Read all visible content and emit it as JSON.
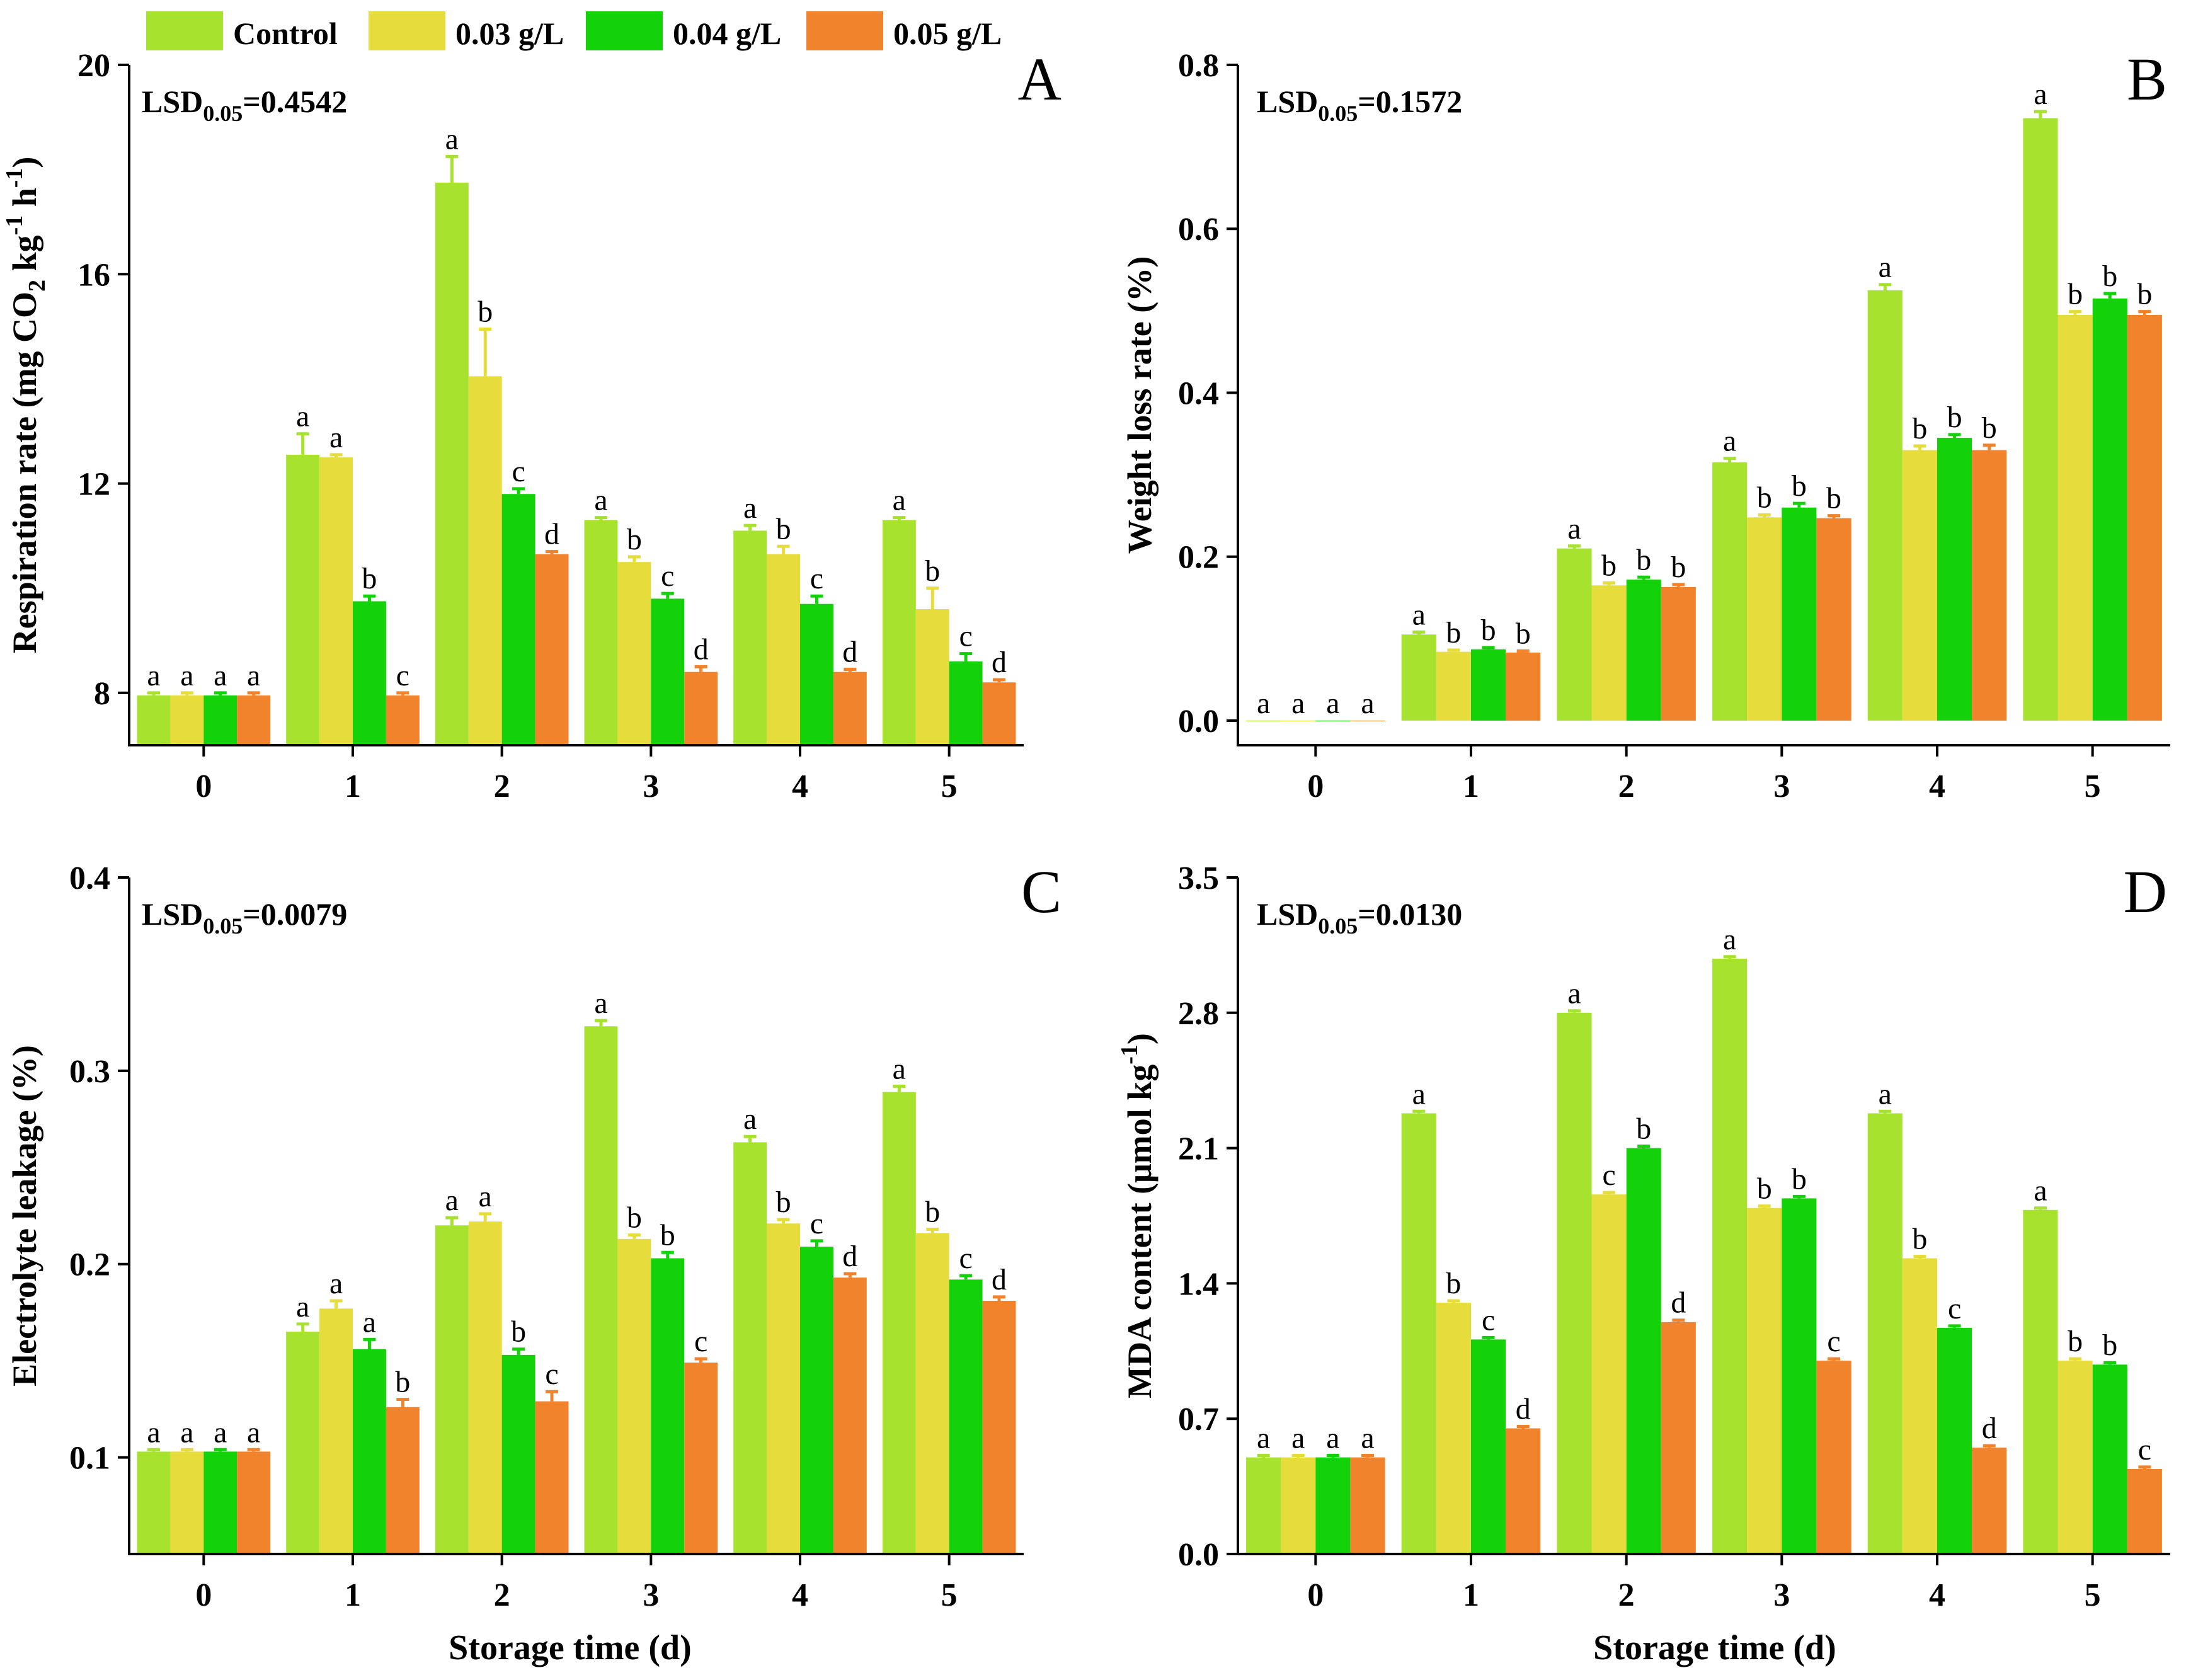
{
  "legend": {
    "items": [
      {
        "label": "Control",
        "color": "#a6e22e"
      },
      {
        "label": "0.03 g/L",
        "color": "#e6dc3c"
      },
      {
        "label": "0.04 g/L",
        "color": "#14d20a"
      },
      {
        "label": "0.05 g/L",
        "color": "#f0832c"
      }
    ]
  },
  "shared_xlabel": "Storage time (d)",
  "chart_data": [
    {
      "type": "bar",
      "panel_letter": "A",
      "lsd_prefix": "LSD",
      "lsd_sub": "0.05",
      "lsd_value": "=0.4542",
      "ylabel_parts": [
        "Respiration rate (mg CO",
        "2",
        " kg",
        "-1",
        " h",
        "-1",
        ")"
      ],
      "categories": [
        "0",
        "1",
        "2",
        "3",
        "4",
        "5"
      ],
      "ylim": [
        7,
        20
      ],
      "yticks": [
        8,
        12,
        16,
        20
      ],
      "ytick_labels": [
        "8",
        "12",
        "16",
        "20"
      ],
      "series": [
        {
          "name": "Control",
          "values": [
            7.95,
            12.55,
            17.75,
            11.3,
            11.1,
            11.3
          ],
          "errors": [
            0.05,
            0.4,
            0.5,
            0.05,
            0.1,
            0.05
          ],
          "letters": [
            "a",
            "a",
            "a",
            "a",
            "a",
            "a"
          ]
        },
        {
          "name": "0.03 g/L",
          "values": [
            7.95,
            12.5,
            14.05,
            10.5,
            10.65,
            9.6
          ],
          "errors": [
            0.05,
            0.05,
            0.9,
            0.1,
            0.15,
            0.4
          ],
          "letters": [
            "a",
            "a",
            "b",
            "b",
            "b",
            "b"
          ]
        },
        {
          "name": "0.04 g/L",
          "values": [
            7.95,
            9.75,
            11.8,
            9.8,
            9.7,
            8.6
          ],
          "errors": [
            0.05,
            0.1,
            0.1,
            0.1,
            0.15,
            0.15
          ],
          "letters": [
            "a",
            "b",
            "c",
            "c",
            "c",
            "c"
          ]
        },
        {
          "name": "0.05 g/L",
          "values": [
            7.95,
            7.95,
            10.65,
            8.4,
            8.4,
            8.2
          ],
          "errors": [
            0.05,
            0.05,
            0.05,
            0.1,
            0.05,
            0.05
          ],
          "letters": [
            "a",
            "c",
            "d",
            "d",
            "d",
            "d"
          ]
        }
      ]
    },
    {
      "type": "bar",
      "panel_letter": "B",
      "lsd_prefix": "LSD",
      "lsd_sub": "0.05",
      "lsd_value": "=0.1572",
      "ylabel_parts": [
        "Weight loss rate (%)"
      ],
      "categories": [
        "0",
        "1",
        "2",
        "3",
        "4",
        "5"
      ],
      "ylim": [
        -0.03,
        0.8
      ],
      "yticks": [
        0.0,
        0.2,
        0.4,
        0.6,
        0.8
      ],
      "ytick_labels": [
        "0.0",
        "0.2",
        "0.4",
        "0.6",
        "0.8"
      ],
      "series": [
        {
          "name": "Control",
          "values": [
            0.0,
            0.105,
            0.21,
            0.315,
            0.525,
            0.735
          ],
          "errors": [
            0.0,
            0.003,
            0.003,
            0.005,
            0.007,
            0.008
          ],
          "letters": [
            "a",
            "a",
            "a",
            "a",
            "a",
            "a"
          ]
        },
        {
          "name": "0.03 g/L",
          "values": [
            0.0,
            0.084,
            0.165,
            0.248,
            0.33,
            0.495
          ],
          "errors": [
            0.0,
            0.002,
            0.003,
            0.003,
            0.005,
            0.004
          ],
          "letters": [
            "a",
            "b",
            "b",
            "b",
            "b",
            "b"
          ]
        },
        {
          "name": "0.04 g/L",
          "values": [
            0.0,
            0.087,
            0.172,
            0.26,
            0.345,
            0.515
          ],
          "errors": [
            0.0,
            0.002,
            0.003,
            0.005,
            0.004,
            0.006
          ],
          "letters": [
            "a",
            "b",
            "b",
            "b",
            "b",
            "b"
          ]
        },
        {
          "name": "0.05 g/L",
          "values": [
            0.0,
            0.083,
            0.163,
            0.247,
            0.33,
            0.495
          ],
          "errors": [
            0.0,
            0.002,
            0.003,
            0.003,
            0.006,
            0.004
          ],
          "letters": [
            "a",
            "b",
            "b",
            "b",
            "b",
            "b"
          ]
        }
      ]
    },
    {
      "type": "bar",
      "panel_letter": "C",
      "lsd_prefix": "LSD",
      "lsd_sub": "0.05",
      "lsd_value": "=0.0079",
      "ylabel_parts": [
        "Electrolyte leakage (%)"
      ],
      "categories": [
        "0",
        "1",
        "2",
        "3",
        "4",
        "5"
      ],
      "ylim": [
        0.05,
        0.4
      ],
      "yticks": [
        0.1,
        0.2,
        0.3,
        0.4
      ],
      "ytick_labels": [
        "0.1",
        "0.2",
        "0.3",
        "0.4"
      ],
      "series": [
        {
          "name": "Control",
          "values": [
            0.103,
            0.165,
            0.22,
            0.323,
            0.263,
            0.289
          ],
          "errors": [
            0.001,
            0.004,
            0.004,
            0.003,
            0.003,
            0.003
          ],
          "letters": [
            "a",
            "a",
            "a",
            "a",
            "a",
            "a"
          ]
        },
        {
          "name": "0.03 g/L",
          "values": [
            0.103,
            0.177,
            0.222,
            0.213,
            0.221,
            0.216
          ],
          "errors": [
            0.001,
            0.004,
            0.004,
            0.002,
            0.002,
            0.002
          ],
          "letters": [
            "a",
            "a",
            "a",
            "b",
            "b",
            "b"
          ]
        },
        {
          "name": "0.04 g/L",
          "values": [
            0.103,
            0.156,
            0.153,
            0.203,
            0.209,
            0.192
          ],
          "errors": [
            0.001,
            0.005,
            0.003,
            0.003,
            0.003,
            0.002
          ],
          "letters": [
            "a",
            "a",
            "b",
            "b",
            "c",
            "c"
          ]
        },
        {
          "name": "0.05 g/L",
          "values": [
            0.103,
            0.126,
            0.129,
            0.149,
            0.193,
            0.181
          ],
          "errors": [
            0.001,
            0.004,
            0.005,
            0.002,
            0.002,
            0.002
          ],
          "letters": [
            "a",
            "b",
            "c",
            "c",
            "d",
            "d"
          ]
        }
      ]
    },
    {
      "type": "bar",
      "panel_letter": "D",
      "lsd_prefix": "LSD",
      "lsd_sub": "0.05",
      "lsd_value": "=0.0130",
      "ylabel_parts": [
        "MDA content (μmol kg",
        "-1",
        ")"
      ],
      "categories": [
        "0",
        "1",
        "2",
        "3",
        "4",
        "5"
      ],
      "ylim": [
        0.0,
        3.5
      ],
      "yticks": [
        0.0,
        0.7,
        1.4,
        2.1,
        2.8,
        3.5
      ],
      "ytick_labels": [
        "0.0",
        "0.7",
        "1.4",
        "2.1",
        "2.8",
        "3.5"
      ],
      "series": [
        {
          "name": "Control",
          "values": [
            0.5,
            2.28,
            2.8,
            3.08,
            2.28,
            1.78
          ],
          "errors": [
            0.01,
            0.01,
            0.01,
            0.01,
            0.01,
            0.01
          ],
          "letters": [
            "a",
            "a",
            "a",
            "a",
            "a",
            "a"
          ]
        },
        {
          "name": "0.03 g/L",
          "values": [
            0.5,
            1.3,
            1.86,
            1.79,
            1.53,
            1.0
          ],
          "errors": [
            0.01,
            0.01,
            0.01,
            0.01,
            0.01,
            0.01
          ],
          "letters": [
            "a",
            "b",
            "c",
            "b",
            "b",
            "b"
          ]
        },
        {
          "name": "0.04 g/L",
          "values": [
            0.5,
            1.11,
            2.1,
            1.84,
            1.17,
            0.98
          ],
          "errors": [
            0.01,
            0.01,
            0.01,
            0.01,
            0.01,
            0.01
          ],
          "letters": [
            "a",
            "c",
            "b",
            "b",
            "c",
            "b"
          ]
        },
        {
          "name": "0.05 g/L",
          "values": [
            0.5,
            0.65,
            1.2,
            1.0,
            0.55,
            0.44
          ],
          "errors": [
            0.01,
            0.01,
            0.01,
            0.01,
            0.01,
            0.01
          ],
          "letters": [
            "a",
            "d",
            "d",
            "c",
            "d",
            "c"
          ]
        }
      ]
    }
  ]
}
